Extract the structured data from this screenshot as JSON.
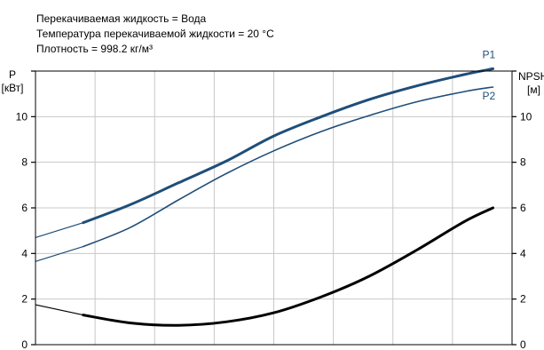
{
  "header": {
    "line1": "Перекачиваемая жидкость = Вода",
    "line2": "Температура перекачиваемой жидкости = 20 °C",
    "line3": "Плотность = 998.2 кг/м³"
  },
  "chart_data": {
    "type": "line",
    "left_axis": {
      "label_line1": "P",
      "label_line2": "[кВт]",
      "ylim": [
        0,
        12
      ],
      "ticks": [
        "0",
        "2",
        "4",
        "6",
        "8",
        "10"
      ]
    },
    "right_axis": {
      "label_line1": "NPSH",
      "label_line2": "[м]",
      "ylim": [
        0,
        12
      ],
      "ticks": [
        "0",
        "2",
        "4",
        "6",
        "8",
        "10"
      ]
    },
    "grid": true,
    "xlim": [
      0,
      1
    ],
    "series": [
      {
        "name": "P1",
        "color": "#1f4e79",
        "axis": "left",
        "ext_x": [
          0.0,
          0.1
        ],
        "ext_y": [
          4.7,
          5.35
        ],
        "x": [
          0.1,
          0.2,
          0.3,
          0.4,
          0.5,
          0.6,
          0.7,
          0.8,
          0.9,
          0.96
        ],
        "y": [
          5.35,
          6.15,
          7.1,
          8.05,
          9.15,
          10.0,
          10.75,
          11.35,
          11.85,
          12.1
        ]
      },
      {
        "name": "P2",
        "color": "#1f4e79",
        "axis": "left",
        "ext_x": [
          0.0,
          0.1
        ],
        "ext_y": [
          3.65,
          4.3
        ],
        "x": [
          0.1,
          0.2,
          0.3,
          0.4,
          0.5,
          0.6,
          0.7,
          0.8,
          0.9,
          0.96
        ],
        "y": [
          4.3,
          5.15,
          6.35,
          7.5,
          8.5,
          9.35,
          10.05,
          10.65,
          11.1,
          11.3
        ]
      },
      {
        "name": "",
        "color": "#000000",
        "axis": "right",
        "ext_x": [
          0.0,
          0.1
        ],
        "ext_y": [
          1.75,
          1.3
        ],
        "x": [
          0.1,
          0.2,
          0.3,
          0.4,
          0.5,
          0.6,
          0.7,
          0.8,
          0.9,
          0.96
        ],
        "y": [
          1.3,
          0.95,
          0.85,
          1.0,
          1.4,
          2.1,
          3.0,
          4.15,
          5.4,
          6.0
        ]
      }
    ]
  }
}
